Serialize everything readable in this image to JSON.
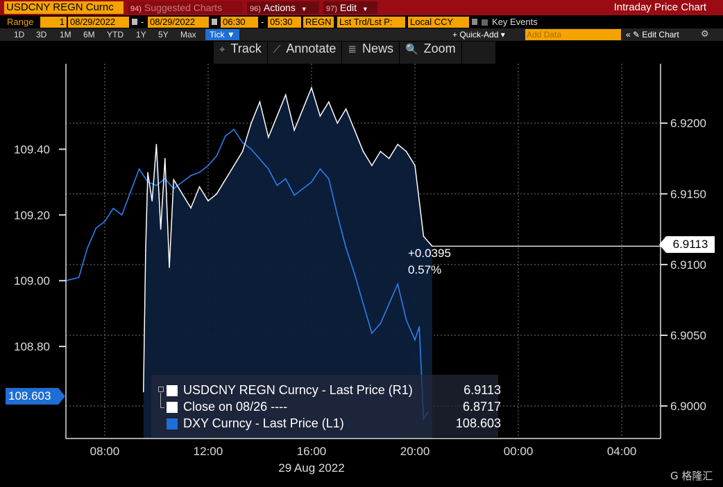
{
  "header": {
    "ticker": "USDCNY REGN Curnc",
    "suggested": {
      "num": "94)",
      "label": "Suggested Charts"
    },
    "actions": {
      "num": "96)",
      "label": "Actions"
    },
    "edit": {
      "num": "97)",
      "label": "Edit"
    },
    "window_title": "Intraday Price Chart"
  },
  "range_row": {
    "range_label": "Range",
    "range_num": "1",
    "start_date": "08/29/2022",
    "end_date": "08/29/2022",
    "start_time": "06:30",
    "end_time": "05:30",
    "session": "REGN",
    "price_field": "Lst Trd/Lst P:",
    "currency": "Local CCY",
    "key_events": "Key Events"
  },
  "period_row": {
    "periods": [
      "1D",
      "3D",
      "1M",
      "6M",
      "YTD",
      "1Y",
      "5Y",
      "Max"
    ],
    "tick_label": "Tick ▼",
    "quick_add": "+ Quick-Add ▾",
    "add_data_placeholder": "Add Data",
    "edit_chart": "« ✎ Edit Chart",
    "settings_icon": "⚙"
  },
  "tools": [
    {
      "icon": "crosshair-icon",
      "glyph": "⌖",
      "label": "Track"
    },
    {
      "icon": "annotate-icon",
      "glyph": "⟋",
      "label": "Annotate"
    },
    {
      "icon": "news-icon",
      "glyph": "≣",
      "label": "News"
    },
    {
      "icon": "zoom-icon",
      "glyph": "🔍",
      "label": "Zoom"
    }
  ],
  "change": {
    "abs": "+0.0395",
    "pct": "0.57%"
  },
  "badges": {
    "right": "6.9113",
    "left": "108.603"
  },
  "legend": [
    {
      "swatch": "#ffffff",
      "label": "USDCNY REGN Curncy - Last Price (R1)",
      "value": "6.9113"
    },
    {
      "swatch": "#ffffff",
      "label": "Close on 08/26 ----",
      "value": "6.8717"
    },
    {
      "swatch": "#1f6ed4",
      "label": "DXY Curncy - Last Price (L1)",
      "value": "108.603"
    }
  ],
  "watermark": "G 格隆汇",
  "colors": {
    "usdcny": "#ffffff",
    "dxy": "#2a7ff0",
    "fill": "#0d1f3b",
    "grid": "#777777",
    "top_bar": "#9a0b14",
    "accent": "#f5a300"
  },
  "chart_data": {
    "type": "line",
    "x_unit": "time (hh:mm), 29 Aug 2022",
    "x_ticks": [
      "08:00",
      "12:00",
      "16:00",
      "20:00",
      "00:00",
      "04:00"
    ],
    "x_date_label": "29 Aug 2022",
    "x_range": [
      "06:30",
      "05:30"
    ],
    "left_axis": {
      "ticks": [
        108.8,
        109.0,
        109.2,
        109.4
      ],
      "tick_labels": [
        "108.80",
        "109.00",
        "109.20",
        "109.40"
      ],
      "range": [
        108.52,
        109.66
      ]
    },
    "right_axis": {
      "ticks": [
        6.9,
        6.905,
        6.91,
        6.915,
        6.92
      ],
      "tick_labels": [
        "6.9000",
        "6.9050",
        "6.9100",
        "6.9150",
        "6.9200"
      ],
      "range": [
        6.8977,
        6.9242
      ]
    },
    "prev_close": 6.8717,
    "series": [
      {
        "name": "USDCNY REGN Curncy - Last Price (R1)",
        "axis": "right",
        "points": [
          [
            "09:30",
            6.901
          ],
          [
            "09:35",
            6.911
          ],
          [
            "09:40",
            6.9165
          ],
          [
            "09:50",
            6.9145
          ],
          [
            "10:00",
            6.9185
          ],
          [
            "10:10",
            6.9125
          ],
          [
            "10:20",
            6.9175
          ],
          [
            "10:30",
            6.9098
          ],
          [
            "10:40",
            6.916
          ],
          [
            "11:00",
            6.915
          ],
          [
            "11:20",
            6.914
          ],
          [
            "11:40",
            6.9155
          ],
          [
            "12:00",
            6.9145
          ],
          [
            "12:20",
            6.915
          ],
          [
            "12:40",
            6.916
          ],
          [
            "13:00",
            6.917
          ],
          [
            "13:20",
            6.918
          ],
          [
            "13:40",
            6.92
          ],
          [
            "14:00",
            6.9215
          ],
          [
            "14:20",
            6.919
          ],
          [
            "14:40",
            6.9205
          ],
          [
            "15:00",
            6.922
          ],
          [
            "15:20",
            6.9195
          ],
          [
            "15:40",
            6.921
          ],
          [
            "16:00",
            6.9225
          ],
          [
            "16:20",
            6.9205
          ],
          [
            "16:40",
            6.9215
          ],
          [
            "17:00",
            6.92
          ],
          [
            "17:20",
            6.921
          ],
          [
            "17:40",
            6.9195
          ],
          [
            "18:00",
            6.918
          ],
          [
            "18:20",
            6.917
          ],
          [
            "18:40",
            6.918
          ],
          [
            "19:00",
            6.9175
          ],
          [
            "19:20",
            6.9185
          ],
          [
            "19:40",
            6.918
          ],
          [
            "20:00",
            6.917
          ],
          [
            "20:10",
            6.9145
          ],
          [
            "20:20",
            6.912
          ],
          [
            "20:40",
            6.9113
          ]
        ]
      },
      {
        "name": "DXY Curncy - Last Price (L1)",
        "axis": "left",
        "points": [
          [
            "06:30",
            109.0
          ],
          [
            "07:00",
            109.01
          ],
          [
            "07:20",
            109.1
          ],
          [
            "07:40",
            109.16
          ],
          [
            "08:00",
            109.18
          ],
          [
            "08:20",
            109.22
          ],
          [
            "08:40",
            109.2
          ],
          [
            "09:00",
            109.27
          ],
          [
            "09:20",
            109.34
          ],
          [
            "09:40",
            109.3
          ],
          [
            "10:00",
            109.29
          ],
          [
            "10:20",
            109.31
          ],
          [
            "10:40",
            109.28
          ],
          [
            "11:00",
            109.3
          ],
          [
            "11:20",
            109.32
          ],
          [
            "11:40",
            109.33
          ],
          [
            "12:00",
            109.35
          ],
          [
            "12:20",
            109.38
          ],
          [
            "12:40",
            109.44
          ],
          [
            "13:00",
            109.46
          ],
          [
            "13:20",
            109.42
          ],
          [
            "13:40",
            109.4
          ],
          [
            "14:00",
            109.37
          ],
          [
            "14:20",
            109.34
          ],
          [
            "14:40",
            109.29
          ],
          [
            "15:00",
            109.31
          ],
          [
            "15:20",
            109.26
          ],
          [
            "15:40",
            109.28
          ],
          [
            "16:00",
            109.3
          ],
          [
            "16:20",
            109.34
          ],
          [
            "16:40",
            109.31
          ],
          [
            "17:00",
            109.2
          ],
          [
            "17:20",
            109.1
          ],
          [
            "17:40",
            109.02
          ],
          [
            "18:00",
            108.93
          ],
          [
            "18:20",
            108.84
          ],
          [
            "18:40",
            108.87
          ],
          [
            "19:00",
            108.93
          ],
          [
            "19:20",
            108.99
          ],
          [
            "19:40",
            108.88
          ],
          [
            "20:00",
            108.82
          ],
          [
            "20:10",
            108.86
          ],
          [
            "20:20",
            108.58
          ],
          [
            "20:30",
            108.6
          ]
        ]
      }
    ]
  }
}
